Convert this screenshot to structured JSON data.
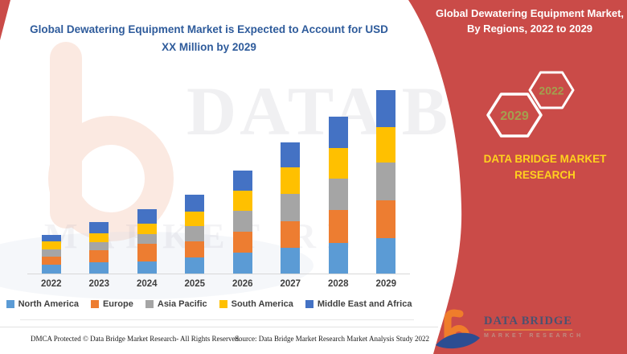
{
  "chart": {
    "title": "Global Dewatering Equipment Market is Expected to Account for USD XX Million by 2029"
  },
  "chart_data": {
    "type": "bar",
    "stacked": true,
    "title": "Global Dewatering Equipment Market is Expected to Account for USD XX Million by 2029",
    "xlabel": "",
    "ylabel": "",
    "y_axis_visible": false,
    "values_unit": "relative height units (y-axis unlabeled, USD XX Million)",
    "categories": [
      "2022",
      "2023",
      "2024",
      "2025",
      "2026",
      "2027",
      "2028",
      "2029"
    ],
    "series": [
      {
        "name": "North America",
        "color": "#5B9BD5",
        "values": [
          11,
          14.5,
          15.5,
          20,
          26.5,
          32.5,
          38.5,
          44.5
        ]
      },
      {
        "name": "Europe",
        "color": "#ED7D31",
        "values": [
          10.5,
          14.5,
          21.5,
          20,
          26,
          32.5,
          40.5,
          47
        ]
      },
      {
        "name": "Asia Pacific",
        "color": "#A5A5A5",
        "values": [
          8.5,
          10,
          12.5,
          19,
          25.5,
          34.5,
          39,
          46.5
        ]
      },
      {
        "name": "South America",
        "color": "#FFC000",
        "values": [
          10,
          11,
          12.5,
          18.5,
          25.5,
          32.5,
          38.5,
          44.5
        ]
      },
      {
        "name": "Middle East and Africa",
        "color": "#4472C4",
        "values": [
          8.5,
          14,
          18.5,
          20.5,
          25,
          31,
          38.5,
          46
        ]
      }
    ],
    "legend_position": "bottom",
    "grid": false
  },
  "sidebar": {
    "title": "Global Dewatering Equipment Market, By Regions, 2022 to 2029",
    "hexagon_left_year": "2029",
    "hexagon_right_year": "2022",
    "brand_line1": "DATA BRIDGE MARKET",
    "brand_line2": "RESEARCH",
    "colors": {
      "panel_red": "#CA4B48",
      "brand_yellow": "#FFD21E",
      "hex_year_olive": "#A3A04E"
    }
  },
  "logo": {
    "name": "DATA BRIDGE",
    "subtitle": "MARKET RESEARCH"
  },
  "watermark": {
    "text1": "DATA B",
    "text2": "MARKET RE"
  },
  "footer": {
    "left": "DMCA Protected © Data Bridge Market Research- All Rights Reserved.",
    "source": "Source: Data Bridge Market Research Market Analysis Study 2022"
  }
}
